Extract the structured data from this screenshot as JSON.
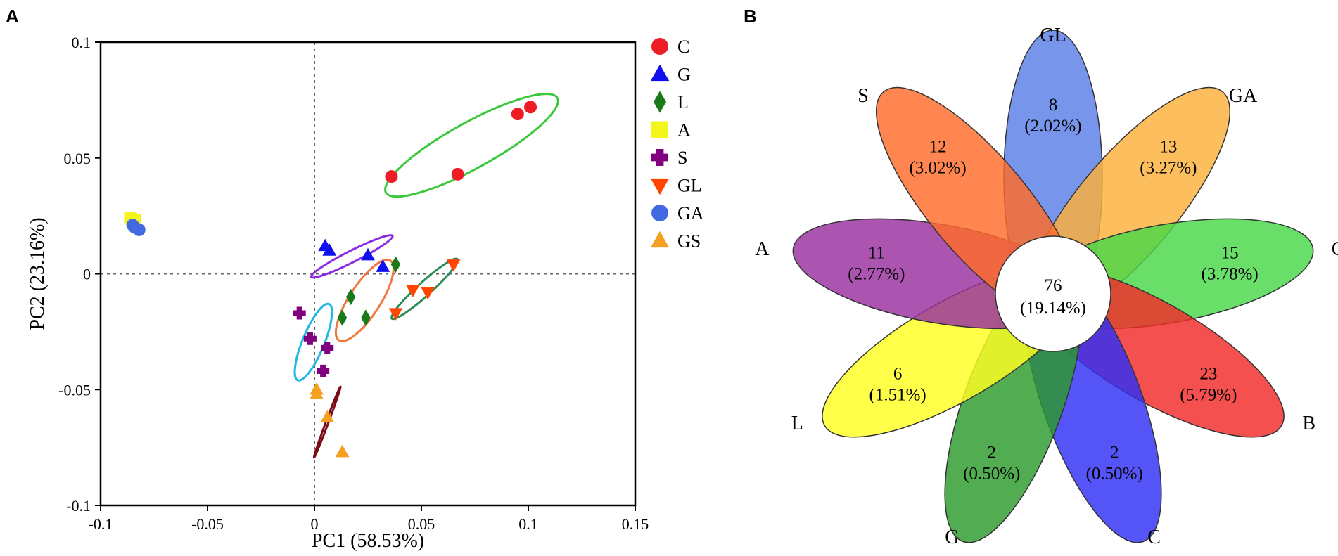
{
  "panel_a_label": "A",
  "panel_b_label": "B",
  "chart_data": [
    {
      "type": "scatter",
      "title": "",
      "xlabel": "PC1 (58.53%)",
      "ylabel": "PC2 (23.16%)",
      "xlim": [
        -0.1,
        0.15
      ],
      "ylim": [
        -0.1,
        0.1
      ],
      "xticks": [
        -0.1,
        -0.05,
        0,
        0.05,
        0.1,
        0.15
      ],
      "xtick_labels": [
        "-0.1",
        "-0.05",
        "0",
        "0.05",
        "0.1",
        "0.15"
      ],
      "yticks": [
        -0.1,
        -0.05,
        0,
        0.05,
        0.1
      ],
      "ytick_labels": [
        "-0.1",
        "-0.05",
        "0",
        "0.05",
        "0.1"
      ],
      "reference_lines": {
        "x": 0,
        "y": 0
      },
      "legend_position": "right",
      "series": [
        {
          "name": "C",
          "marker": "circle",
          "color": "#ee1c25",
          "points": [
            [
              0.036,
              0.042
            ],
            [
              0.067,
              0.043
            ],
            [
              0.095,
              0.069
            ],
            [
              0.101,
              0.072
            ]
          ],
          "ellipse": {
            "color": "#3cc83c",
            "center": [
              0.0735,
              0.0555
            ],
            "rx": 0.045,
            "ry": 0.01,
            "angle_deg": 27
          }
        },
        {
          "name": "G",
          "marker": "triangle",
          "color": "#1010ee",
          "points": [
            [
              0.005,
              0.012
            ],
            [
              0.007,
              0.01
            ],
            [
              0.025,
              0.008
            ],
            [
              0.032,
              0.003
            ]
          ],
          "ellipse": {
            "color": "#8b2be2",
            "center": [
              0.0175,
              0.0075
            ],
            "rx": 0.021,
            "ry": 0.0025,
            "angle_deg": 25
          }
        },
        {
          "name": "L",
          "marker": "diamond",
          "color": "#1a7a1a",
          "points": [
            [
              0.038,
              0.004
            ],
            [
              0.017,
              -0.01
            ],
            [
              0.013,
              -0.019
            ],
            [
              0.024,
              -0.019
            ]
          ],
          "ellipse": {
            "color": "#f07840",
            "center": [
              0.0235,
              -0.0115
            ],
            "rx": 0.021,
            "ry": 0.007,
            "angle_deg": 55
          }
        },
        {
          "name": "A",
          "marker": "square",
          "color": "#f5f51e",
          "points": [
            [
              -0.086,
              0.024
            ],
            [
              -0.084,
              0.023
            ]
          ]
        },
        {
          "name": "S",
          "marker": "cross",
          "color": "#800080",
          "points": [
            [
              -0.007,
              -0.017
            ],
            [
              -0.002,
              -0.028
            ],
            [
              0.006,
              -0.032
            ],
            [
              0.004,
              -0.042
            ]
          ],
          "ellipse": {
            "color": "#20b8e0",
            "center": [
              -0.0005,
              -0.0295
            ],
            "rx": 0.018,
            "ry": 0.005,
            "angle_deg": 66
          }
        },
        {
          "name": "GL",
          "marker": "triangle-down",
          "color": "#ff4500",
          "points": [
            [
              0.065,
              0.004
            ],
            [
              0.046,
              -0.007
            ],
            [
              0.053,
              -0.008
            ],
            [
              0.038,
              -0.017
            ]
          ],
          "ellipse": {
            "color": "#2e8b57",
            "center": [
              0.0515,
              -0.0065
            ],
            "rx": 0.02,
            "ry": 0.003,
            "angle_deg": 40
          }
        },
        {
          "name": "GA",
          "marker": "circle",
          "color": "#4169e1",
          "points": [
            [
              -0.085,
              0.021
            ],
            [
              -0.082,
              0.019
            ],
            [
              -0.084,
              0.02
            ]
          ]
        },
        {
          "name": "GS",
          "marker": "triangle",
          "color": "#f5a020",
          "points": [
            [
              0.001,
              -0.05
            ],
            [
              0.001,
              -0.052
            ],
            [
              0.006,
              -0.062
            ],
            [
              0.013,
              -0.077
            ]
          ],
          "ellipse": {
            "color": "#7a0a14",
            "center": [
              0.006,
              -0.064
            ],
            "rx": 0.0165,
            "ry": 0.0006,
            "angle_deg": 68
          }
        }
      ]
    },
    {
      "type": "flower-venn",
      "center": {
        "value": "76",
        "percent": "(19.14%)"
      },
      "petals": [
        {
          "name": "GL",
          "value": "8",
          "percent": "(2.02%)",
          "color": "#5a7ee8"
        },
        {
          "name": "GA",
          "value": "13",
          "percent": "(3.27%)",
          "color": "#fcb03a"
        },
        {
          "name": "GS",
          "value": "15",
          "percent": "(3.78%)",
          "color": "#48d848"
        },
        {
          "name": "B",
          "value": "23",
          "percent": "(5.79%)",
          "color": "#f32a2a"
        },
        {
          "name": "C",
          "value": "2",
          "percent": "(0.50%)",
          "color": "#2f2ff5"
        },
        {
          "name": "G",
          "value": "2",
          "percent": "(0.50%)",
          "color": "#2c9a2c"
        },
        {
          "name": "L",
          "value": "6",
          "percent": "(1.51%)",
          "color": "#ffff22"
        },
        {
          "name": "A",
          "value": "11",
          "percent": "(2.77%)",
          "color": "#9830a0"
        },
        {
          "name": "S",
          "value": "12",
          "percent": "(3.02%)",
          "color": "#ff6b2a"
        }
      ]
    }
  ]
}
